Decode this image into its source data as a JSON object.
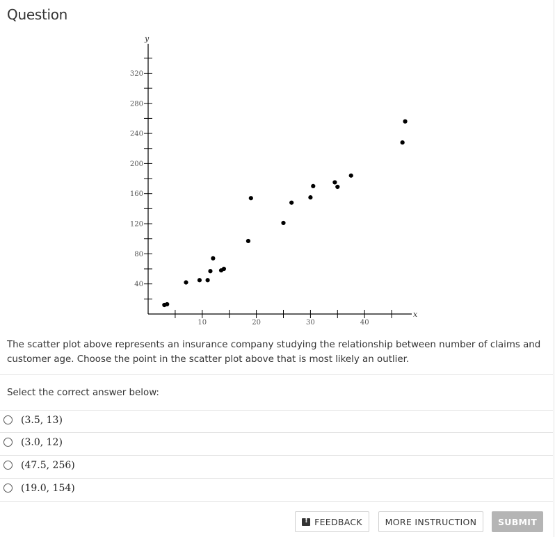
{
  "question": {
    "title": "Question",
    "prompt": "The scatter plot above represents an insurance company studying the relationship between number of claims and customer age. Choose the point in the scatter plot above that is most likely an outlier.",
    "instruction": "Select the correct answer below:",
    "options": [
      {
        "label": "(3.5, 13)"
      },
      {
        "label": "(3.0, 12)"
      },
      {
        "label": "(47.5, 256)"
      },
      {
        "label": "(19.0, 154)"
      }
    ]
  },
  "buttons": {
    "feedback": "FEEDBACK",
    "more_instruction": "MORE INSTRUCTION",
    "submit": "SUBMIT"
  },
  "chart_data": {
    "type": "scatter",
    "xlabel": "x",
    "ylabel": "y",
    "xlim": [
      0,
      45
    ],
    "ylim": [
      0,
      340
    ],
    "x_ticks": [
      10,
      20,
      30,
      40
    ],
    "y_ticks": [
      40,
      80,
      120,
      160,
      200,
      240,
      280,
      320
    ],
    "grid": false,
    "points": [
      {
        "x": 3.0,
        "y": 12
      },
      {
        "x": 3.5,
        "y": 13
      },
      {
        "x": 7.0,
        "y": 42
      },
      {
        "x": 9.5,
        "y": 45
      },
      {
        "x": 11.0,
        "y": 45
      },
      {
        "x": 11.5,
        "y": 57
      },
      {
        "x": 12.0,
        "y": 74
      },
      {
        "x": 13.5,
        "y": 58
      },
      {
        "x": 14.0,
        "y": 60
      },
      {
        "x": 18.5,
        "y": 97
      },
      {
        "x": 19.0,
        "y": 154
      },
      {
        "x": 25.0,
        "y": 121
      },
      {
        "x": 26.5,
        "y": 148
      },
      {
        "x": 30.0,
        "y": 155
      },
      {
        "x": 30.5,
        "y": 170
      },
      {
        "x": 34.5,
        "y": 175
      },
      {
        "x": 35.0,
        "y": 169
      },
      {
        "x": 37.5,
        "y": 184
      },
      {
        "x": 47.0,
        "y": 228
      },
      {
        "x": 47.5,
        "y": 256
      }
    ]
  }
}
